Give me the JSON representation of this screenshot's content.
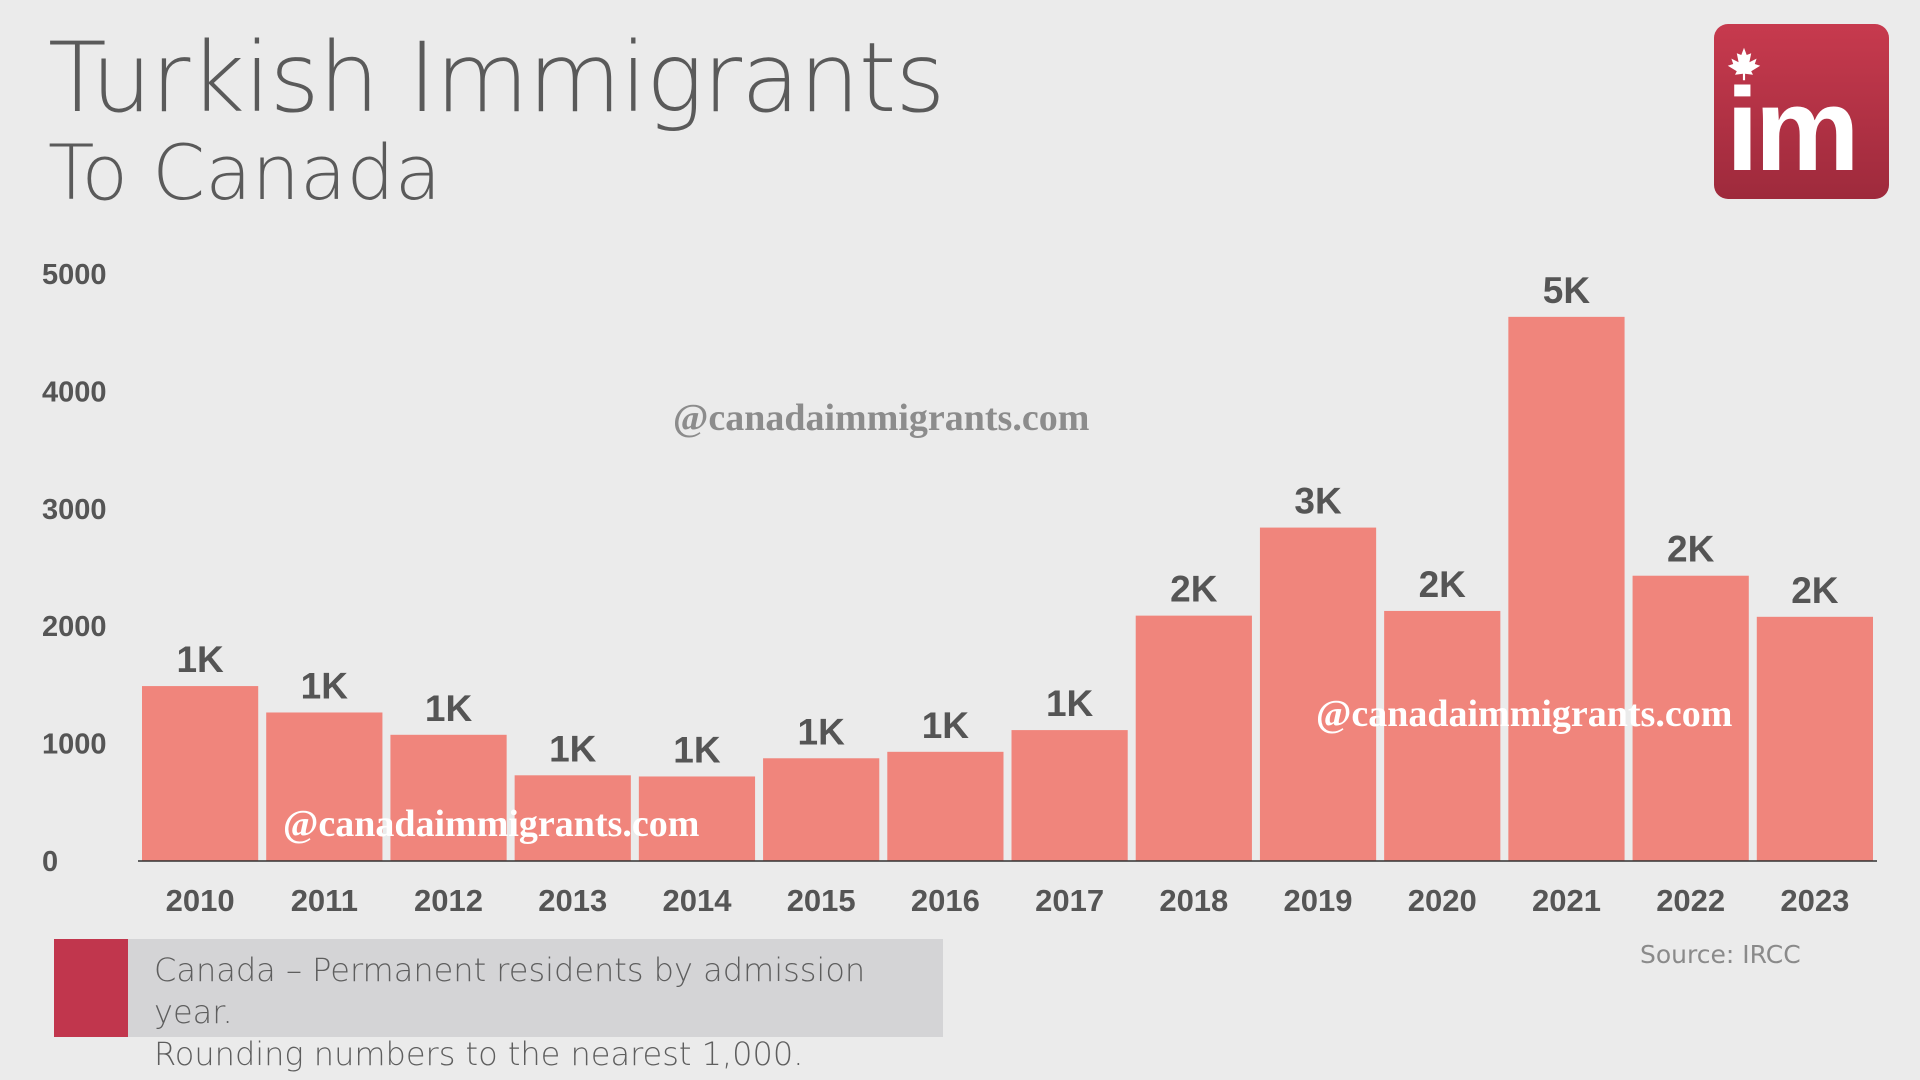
{
  "header": {
    "title": "Turkish Immigrants",
    "subtitle": "To Canada"
  },
  "logo": {
    "text": "im",
    "icon": "maple-leaf-icon",
    "color": "#c1364d"
  },
  "chart_data": {
    "type": "bar",
    "categories": [
      "2010",
      "2011",
      "2012",
      "2013",
      "2014",
      "2015",
      "2016",
      "2017",
      "2018",
      "2019",
      "2020",
      "2021",
      "2022",
      "2023"
    ],
    "values": [
      1490,
      1265,
      1075,
      730,
      720,
      875,
      930,
      1115,
      2090,
      2840,
      2130,
      4635,
      2430,
      2080
    ],
    "data_labels": [
      "1K",
      "1K",
      "1K",
      "1K",
      "1K",
      "1K",
      "1K",
      "1K",
      "2K",
      "3K",
      "2K",
      "5K",
      "2K",
      "2K"
    ],
    "ylim": [
      0,
      5000
    ],
    "yticks": [
      0,
      1000,
      2000,
      3000,
      4000,
      5000
    ],
    "grid": false,
    "bar_color": "#f0857c",
    "label_color": "#555555"
  },
  "legend": {
    "line1": "Canada – Permanent residents by admission year.",
    "line2": "Rounding numbers to the nearest 1,000.",
    "color": "#c1364d"
  },
  "source": "Source: IRCC",
  "watermarks": [
    "@canadaimmigrants.com",
    "@canadaimmigrants.com",
    "@canadaimmigrants.com"
  ]
}
